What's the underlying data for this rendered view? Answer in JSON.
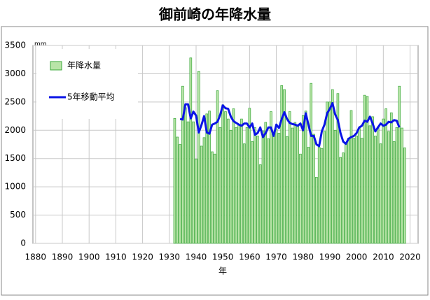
{
  "chart_data": {
    "type": "bar+line",
    "title": "御前崎の年降水量",
    "y_unit": "mm",
    "x_label": "年",
    "x": [
      1932,
      1933,
      1934,
      1935,
      1936,
      1937,
      1938,
      1939,
      1940,
      1941,
      1942,
      1943,
      1944,
      1945,
      1946,
      1947,
      1948,
      1949,
      1950,
      1951,
      1952,
      1953,
      1954,
      1955,
      1956,
      1957,
      1958,
      1959,
      1960,
      1961,
      1962,
      1963,
      1964,
      1965,
      1966,
      1967,
      1968,
      1969,
      1970,
      1971,
      1972,
      1973,
      1974,
      1975,
      1976,
      1977,
      1978,
      1979,
      1980,
      1981,
      1982,
      1983,
      1984,
      1985,
      1986,
      1987,
      1988,
      1989,
      1990,
      1991,
      1992,
      1993,
      1994,
      1995,
      1996,
      1997,
      1998,
      1999,
      2000,
      2001,
      2002,
      2003,
      2004,
      2005,
      2006,
      2007,
      2008,
      2009,
      2010,
      2011,
      2012,
      2013,
      2014,
      2015,
      2016,
      2017,
      2018
    ],
    "series": [
      {
        "name": "年降水量",
        "kind": "bar",
        "color": "#b9e4a8",
        "edge_color": "#3aa83a",
        "values": [
          2210,
          1880,
          1750,
          2780,
          2400,
          2150,
          3280,
          2150,
          1490,
          3040,
          1720,
          1870,
          2290,
          2340,
          1620,
          1580,
          2700,
          2050,
          2450,
          2330,
          2200,
          2000,
          2380,
          2050,
          2100,
          2200,
          1760,
          2050,
          2390,
          1800,
          2050,
          1900,
          1390,
          1990,
          2140,
          1850,
          2330,
          1890,
          2020,
          1950,
          2790,
          2720,
          1890,
          2330,
          2040,
          2140,
          2070,
          1580,
          2260,
          2340,
          1700,
          2830,
          1930,
          1170,
          1700,
          1680,
          1980,
          2500,
          2500,
          2720,
          2000,
          2650,
          1520,
          1600,
          1750,
          1860,
          2350,
          1860,
          1900,
          2040,
          1860,
          2620,
          2600,
          2080,
          2240,
          1900,
          2060,
          1760,
          2200,
          2380,
          1980,
          2310,
          1800,
          2050,
          2780,
          2040,
          1690
        ]
      },
      {
        "name": "5年移動平均",
        "kind": "line",
        "color": "#0a14e6",
        "values": [
          null,
          null,
          2200,
          2190,
          2460,
          2460,
          2210,
          2330,
          2260,
          1960,
          2090,
          2250,
          1960,
          1940,
          2100,
          2120,
          2150,
          2270,
          2440,
          2390,
          2380,
          2240,
          2160,
          2130,
          2100,
          2080,
          2120,
          2120,
          2050,
          2120,
          1920,
          1950,
          2050,
          1880,
          1950,
          2050,
          2050,
          1900,
          2100,
          2040,
          2200,
          2320,
          2200,
          2130,
          2110,
          2100,
          2080,
          2120,
          2000,
          2300,
          2100,
          1900,
          1900,
          1750,
          1720,
          1980,
          2100,
          2300,
          2380,
          2480,
          2280,
          2180,
          1950,
          1800,
          1760,
          1850,
          1880,
          1900,
          1950,
          2050,
          2080,
          2170,
          2150,
          2240,
          2120,
          1980,
          2050,
          2120,
          2080,
          2100,
          2150,
          2140,
          2180,
          2170,
          2050,
          null,
          null
        ]
      }
    ],
    "xlim": [
      1879,
      2023
    ],
    "xticks": [
      1880,
      1890,
      1900,
      1910,
      1920,
      1930,
      1940,
      1950,
      1960,
      1970,
      1980,
      1990,
      2000,
      2010,
      2020
    ],
    "ylim": [
      0,
      3500
    ],
    "yticks": [
      0,
      500,
      1000,
      1500,
      2000,
      2500,
      3000,
      3500
    ],
    "grid": true,
    "legend": "top-left"
  }
}
